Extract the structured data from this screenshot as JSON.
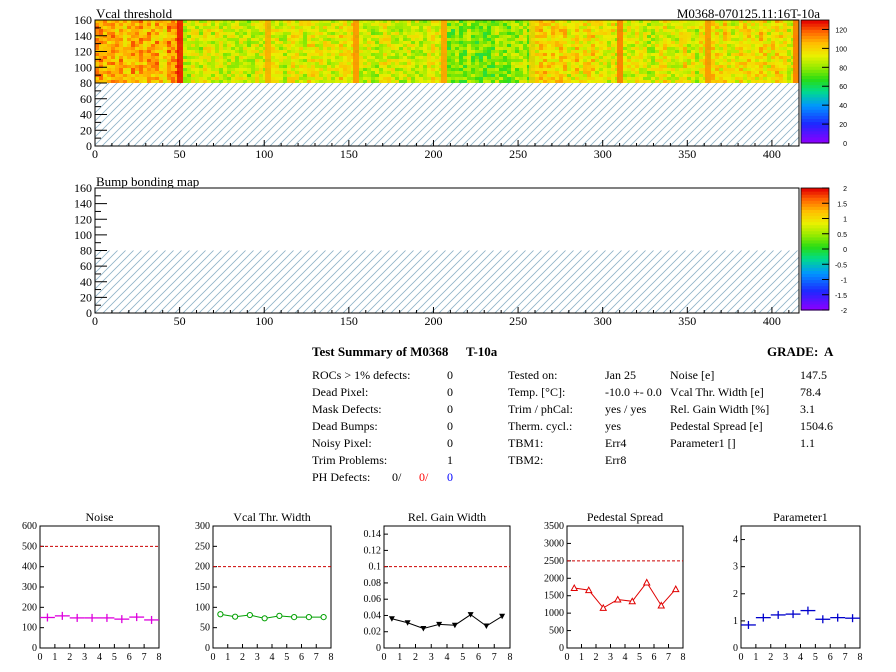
{
  "module_id": "M0368-070125.11:16T-10a",
  "colors": {
    "hatch": "#8fb3c7",
    "ref_line": "#cc0000",
    "noise": "#dd00dd",
    "vcal": "#00a000",
    "gain": "#000000",
    "pedestal": "#e00000",
    "param1": "#0000cc",
    "defect_red": "#ff0000",
    "defect_blue": "#0000ff"
  },
  "summary": {
    "title": "Test Summary of M0368",
    "tag": "T-10a",
    "grade_label": "GRADE:",
    "grade": "A",
    "left_rows": [
      {
        "label": "ROCs > 1% defects:",
        "value": "0"
      },
      {
        "label": "Dead Pixel:",
        "value": "0"
      },
      {
        "label": "Mask Defects:",
        "value": "0"
      },
      {
        "label": "Dead Bumps:",
        "value": "0"
      },
      {
        "label": "Noisy Pixel:",
        "value": "0"
      },
      {
        "label": "Trim Problems:",
        "value": "1"
      }
    ],
    "ph_label": "PH Defects:",
    "ph_values": [
      "0/",
      "0/",
      "0"
    ],
    "middle_rows": [
      {
        "label": "Tested on:",
        "value": "Jan 25"
      },
      {
        "label": "Temp. [°C]:",
        "value": "-10.0 +- 0.0"
      },
      {
        "label": "Trim / phCal:",
        "value": "yes / yes"
      },
      {
        "label": "Therm. cycl.:",
        "value": "yes"
      },
      {
        "label": "TBM1:",
        "value": "Err4"
      },
      {
        "label": "TBM2:",
        "value": "Err8"
      }
    ],
    "right_rows": [
      {
        "label": "Noise [e]",
        "value": "147.5"
      },
      {
        "label": "Vcal Thr. Width [e]",
        "value": "78.4"
      },
      {
        "label": "Rel. Gain Width [%]",
        "value": "3.1"
      },
      {
        "label": "Pedestal Spread [e]",
        "value": "1504.6"
      },
      {
        "label": "Parameter1 []",
        "value": "1.1"
      }
    ]
  },
  "chart_data": [
    {
      "type": "heatmap",
      "title": "Vcal threshold",
      "xlim": [
        0,
        416
      ],
      "ylim": [
        0,
        160
      ],
      "xticks": [
        0,
        50,
        100,
        150,
        200,
        250,
        300,
        350,
        400
      ],
      "yticks": [
        0,
        20,
        40,
        60,
        80,
        100,
        120,
        140,
        160
      ],
      "filled_rows": [
        80,
        160
      ],
      "hatched_rows": [
        0,
        80
      ],
      "palette_range": [
        0,
        130
      ],
      "palette_ticks": [
        0,
        20,
        40,
        60,
        80,
        100,
        120
      ],
      "column_groups": [
        {
          "x": [
            0,
            52
          ],
          "value": 108
        },
        {
          "x": [
            52,
            104
          ],
          "value": 88
        },
        {
          "x": [
            104,
            156
          ],
          "value": 92
        },
        {
          "x": [
            156,
            208
          ],
          "value": 90
        },
        {
          "x": [
            208,
            260
          ],
          "value": 80
        },
        {
          "x": [
            260,
            312
          ],
          "value": 96
        },
        {
          "x": [
            312,
            364
          ],
          "value": 92
        },
        {
          "x": [
            364,
            416
          ],
          "value": 96
        }
      ]
    },
    {
      "type": "heatmap",
      "title": "Bump bonding map",
      "xlim": [
        0,
        416
      ],
      "ylim": [
        0,
        160
      ],
      "xticks": [
        0,
        50,
        100,
        150,
        200,
        250,
        300,
        350,
        400
      ],
      "yticks": [
        0,
        20,
        40,
        60,
        80,
        100,
        120,
        140,
        160
      ],
      "filled_rows": [
        80,
        160
      ],
      "hatched_rows": [
        0,
        80
      ],
      "palette_range": [
        -2,
        2
      ],
      "palette_ticks": [
        "-2",
        "-1.5",
        "-1",
        "-0.5",
        "0",
        "0.5",
        "1",
        "1.5",
        "2"
      ],
      "values": "empty"
    },
    {
      "type": "line",
      "title": "Noise",
      "xlim": [
        0,
        8
      ],
      "ylim": [
        0,
        600
      ],
      "xticks": [
        0,
        1,
        2,
        3,
        4,
        5,
        6,
        7,
        8
      ],
      "yticks": [
        0,
        100,
        200,
        300,
        400,
        500,
        600
      ],
      "ytick_labels": [
        "0",
        "100",
        "200",
        "300",
        "400",
        "500",
        "600"
      ],
      "reference": 500,
      "marker": "cross",
      "connected": false,
      "color_key": "noise",
      "x": [
        0.5,
        1.5,
        2.5,
        3.5,
        4.5,
        5.5,
        6.5,
        7.5
      ],
      "values": [
        150,
        158,
        148,
        148,
        148,
        142,
        152,
        138
      ]
    },
    {
      "type": "line",
      "title": "Vcal Thr. Width",
      "xlim": [
        0,
        8
      ],
      "ylim": [
        0,
        300
      ],
      "xticks": [
        0,
        1,
        2,
        3,
        4,
        5,
        6,
        7,
        8
      ],
      "yticks": [
        0,
        50,
        100,
        150,
        200,
        250,
        300
      ],
      "ytick_labels": [
        "0",
        "50",
        "100",
        "150",
        "200",
        "250",
        "300"
      ],
      "reference": 200,
      "marker": "circle",
      "connected": true,
      "color_key": "vcal",
      "x": [
        0.5,
        1.5,
        2.5,
        3.5,
        4.5,
        5.5,
        6.5,
        7.5
      ],
      "values": [
        83,
        77,
        81,
        73,
        79,
        76,
        76,
        76
      ]
    },
    {
      "type": "line",
      "title": "Rel. Gain Width",
      "xlim": [
        0,
        8
      ],
      "ylim": [
        0,
        0.15
      ],
      "xticks": [
        0,
        1,
        2,
        3,
        4,
        5,
        6,
        7,
        8
      ],
      "yticks": [
        0,
        0.02,
        0.04,
        0.06,
        0.08,
        0.1,
        0.12,
        0.14
      ],
      "ytick_labels": [
        "0",
        "0.02",
        "0.04",
        "0.06",
        "0.08",
        "0.1",
        "0.12",
        "0.14"
      ],
      "reference": 0.1,
      "marker": "triangle-down",
      "connected": true,
      "color_key": "gain",
      "x": [
        0.5,
        1.5,
        2.5,
        3.5,
        4.5,
        5.5,
        6.5,
        7.5
      ],
      "values": [
        0.036,
        0.031,
        0.024,
        0.029,
        0.028,
        0.041,
        0.027,
        0.039
      ]
    },
    {
      "type": "line",
      "title": "Pedestal Spread",
      "xlim": [
        0,
        8
      ],
      "ylim": [
        0,
        3500
      ],
      "xticks": [
        0,
        1,
        2,
        3,
        4,
        5,
        6,
        7,
        8
      ],
      "yticks": [
        0,
        500,
        1000,
        1500,
        2000,
        2500,
        3000,
        3500
      ],
      "ytick_labels": [
        "0",
        "500",
        "1000",
        "1500",
        "2000",
        "2500",
        "3000",
        "3500"
      ],
      "reference": 2500,
      "marker": "triangle-up",
      "connected": true,
      "color_key": "pedestal",
      "x": [
        0.5,
        1.5,
        2.5,
        3.5,
        4.5,
        5.5,
        6.5,
        7.5
      ],
      "values": [
        1720,
        1660,
        1150,
        1390,
        1340,
        1880,
        1220,
        1690
      ]
    },
    {
      "type": "line",
      "title": "Parameter1",
      "xlim": [
        0,
        8
      ],
      "ylim": [
        0,
        4.5
      ],
      "xticks": [
        0,
        1,
        2,
        3,
        4,
        5,
        6,
        7,
        8
      ],
      "yticks": [
        0,
        1,
        2,
        3,
        4
      ],
      "ytick_labels": [
        "0",
        "1",
        "2",
        "3",
        "4"
      ],
      "reference": null,
      "marker": "cross",
      "connected": false,
      "color_key": "param1",
      "x": [
        0.5,
        1.5,
        2.5,
        3.5,
        4.5,
        5.5,
        6.5,
        7.5
      ],
      "values": [
        0.85,
        1.12,
        1.22,
        1.25,
        1.38,
        1.06,
        1.12,
        1.1
      ]
    }
  ]
}
